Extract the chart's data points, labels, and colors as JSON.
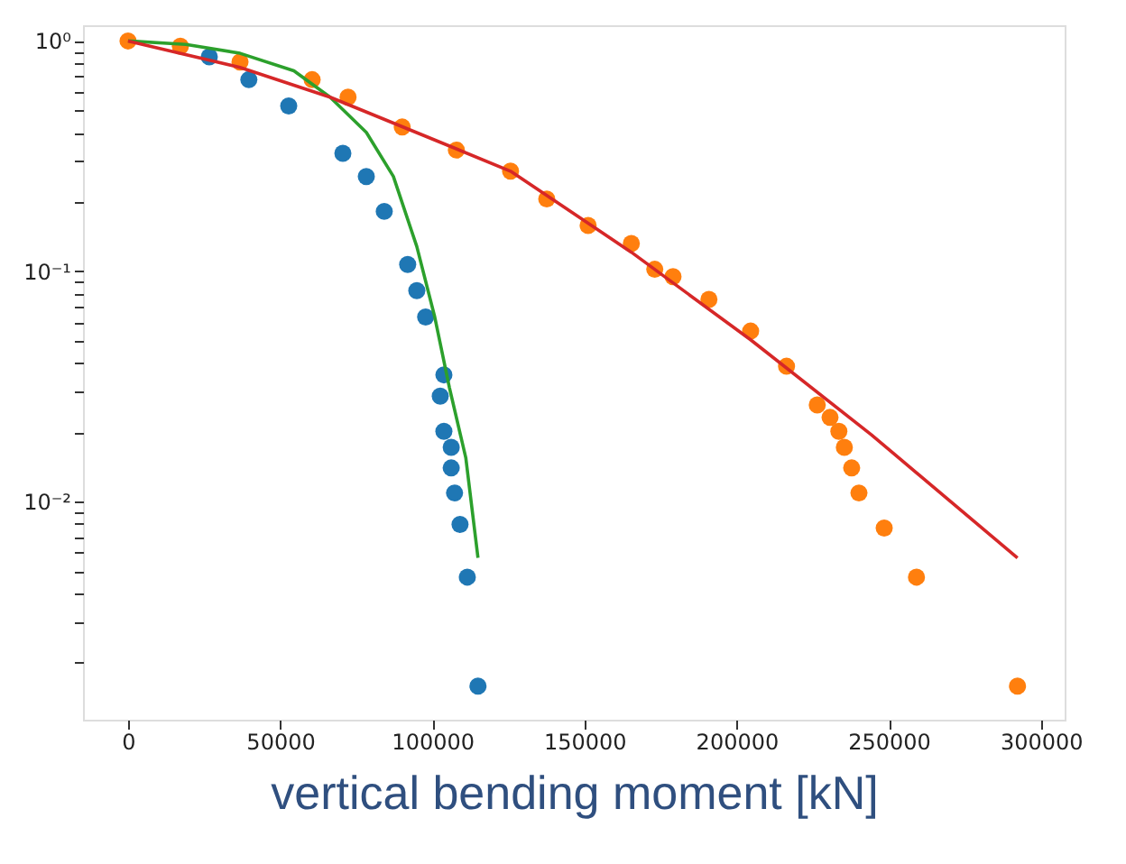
{
  "chart_data": {
    "type": "scatter",
    "xlabel": "vertical bending moment [kN]",
    "log": "y",
    "grid": false,
    "marker": "circle",
    "line_style": "solid",
    "xlim": [
      -14800,
      307800
    ],
    "ylim": [
      0.00113,
      1.17
    ],
    "xticks": [
      0,
      50000,
      100000,
      150000,
      200000,
      250000,
      300000
    ],
    "yticks": [
      {
        "value": 1,
        "label": "10⁰"
      },
      {
        "value": 0.1,
        "label": "10⁻¹"
      },
      {
        "value": 0.01,
        "label": "10⁻²"
      },
      {
        "value": 0.002,
        "label": null
      },
      {
        "value": 0.003,
        "label": null
      },
      {
        "value": 0.004,
        "label": null
      },
      {
        "value": 0.005,
        "label": null
      },
      {
        "value": 0.006,
        "label": null
      },
      {
        "value": 0.007,
        "label": null
      },
      {
        "value": 0.008,
        "label": null
      },
      {
        "value": 0.009,
        "label": null
      },
      {
        "value": 0.02,
        "label": null
      },
      {
        "value": 0.03,
        "label": null
      },
      {
        "value": 0.04,
        "label": null
      },
      {
        "value": 0.05,
        "label": null
      },
      {
        "value": 0.06,
        "label": null
      },
      {
        "value": 0.07,
        "label": null
      },
      {
        "value": 0.08,
        "label": null
      },
      {
        "value": 0.09,
        "label": null
      },
      {
        "value": 0.2,
        "label": null
      },
      {
        "value": 0.3,
        "label": null
      },
      {
        "value": 0.4,
        "label": null
      },
      {
        "value": 0.5,
        "label": null
      },
      {
        "value": 0.6,
        "label": null
      },
      {
        "value": 0.7,
        "label": null
      },
      {
        "value": 0.8,
        "label": null
      },
      {
        "value": 0.9,
        "label": null
      }
    ],
    "series": [
      {
        "color": "#1f77b4",
        "x": [
          26700,
          39700,
          52800,
          70600,
          78300,
          84200,
          91900,
          94900,
          97800,
          102600,
          103800,
          103800,
          106200,
          106200,
          107300,
          109100,
          111500,
          115000
        ],
        "values": [
          0.854,
          0.679,
          0.522,
          0.325,
          0.258,
          0.182,
          0.107,
          0.0824,
          0.0633,
          0.0287,
          0.0355,
          0.0202,
          0.0172,
          0.014,
          0.0109,
          0.00796,
          0.0047,
          0.00158
        ]
      },
      {
        "color": "#ff7f0e",
        "x": [
          0,
          17200,
          36800,
          60500,
          72300,
          90100,
          107900,
          125700,
          137600,
          151200,
          165400,
          173100,
          179100,
          190900,
          204600,
          216400,
          226500,
          230700,
          233600,
          235400,
          237800,
          240200,
          248500,
          259100,
          292300
        ],
        "values": [
          1.0,
          0.949,
          0.81,
          0.679,
          0.57,
          0.423,
          0.336,
          0.272,
          0.206,
          0.158,
          0.132,
          0.102,
          0.0948,
          0.0755,
          0.055,
          0.0387,
          0.0263,
          0.0232,
          0.0202,
          0.0172,
          0.014,
          0.0109,
          0.00768,
          0.0047,
          0.00158
        ]
      },
      {
        "type": "line",
        "marker": "none",
        "color": "#2ca02c",
        "x": [
          0,
          19000,
          36800,
          54500,
          66400,
          78300,
          87200,
          94900,
          100800,
          105600,
          111000,
          115000
        ],
        "values": [
          1.0,
          0.966,
          0.884,
          0.742,
          0.57,
          0.401,
          0.258,
          0.128,
          0.0633,
          0.0313,
          0.0155,
          0.0057
        ]
      },
      {
        "type": "line",
        "marker": "none",
        "color": "#d62728",
        "x": [
          0,
          36800,
          66400,
          96100,
          125700,
          165400,
          204600,
          244300,
          292300
        ],
        "values": [
          1.0,
          0.768,
          0.57,
          0.394,
          0.272,
          0.121,
          0.0504,
          0.0195,
          0.0057
        ]
      }
    ]
  }
}
